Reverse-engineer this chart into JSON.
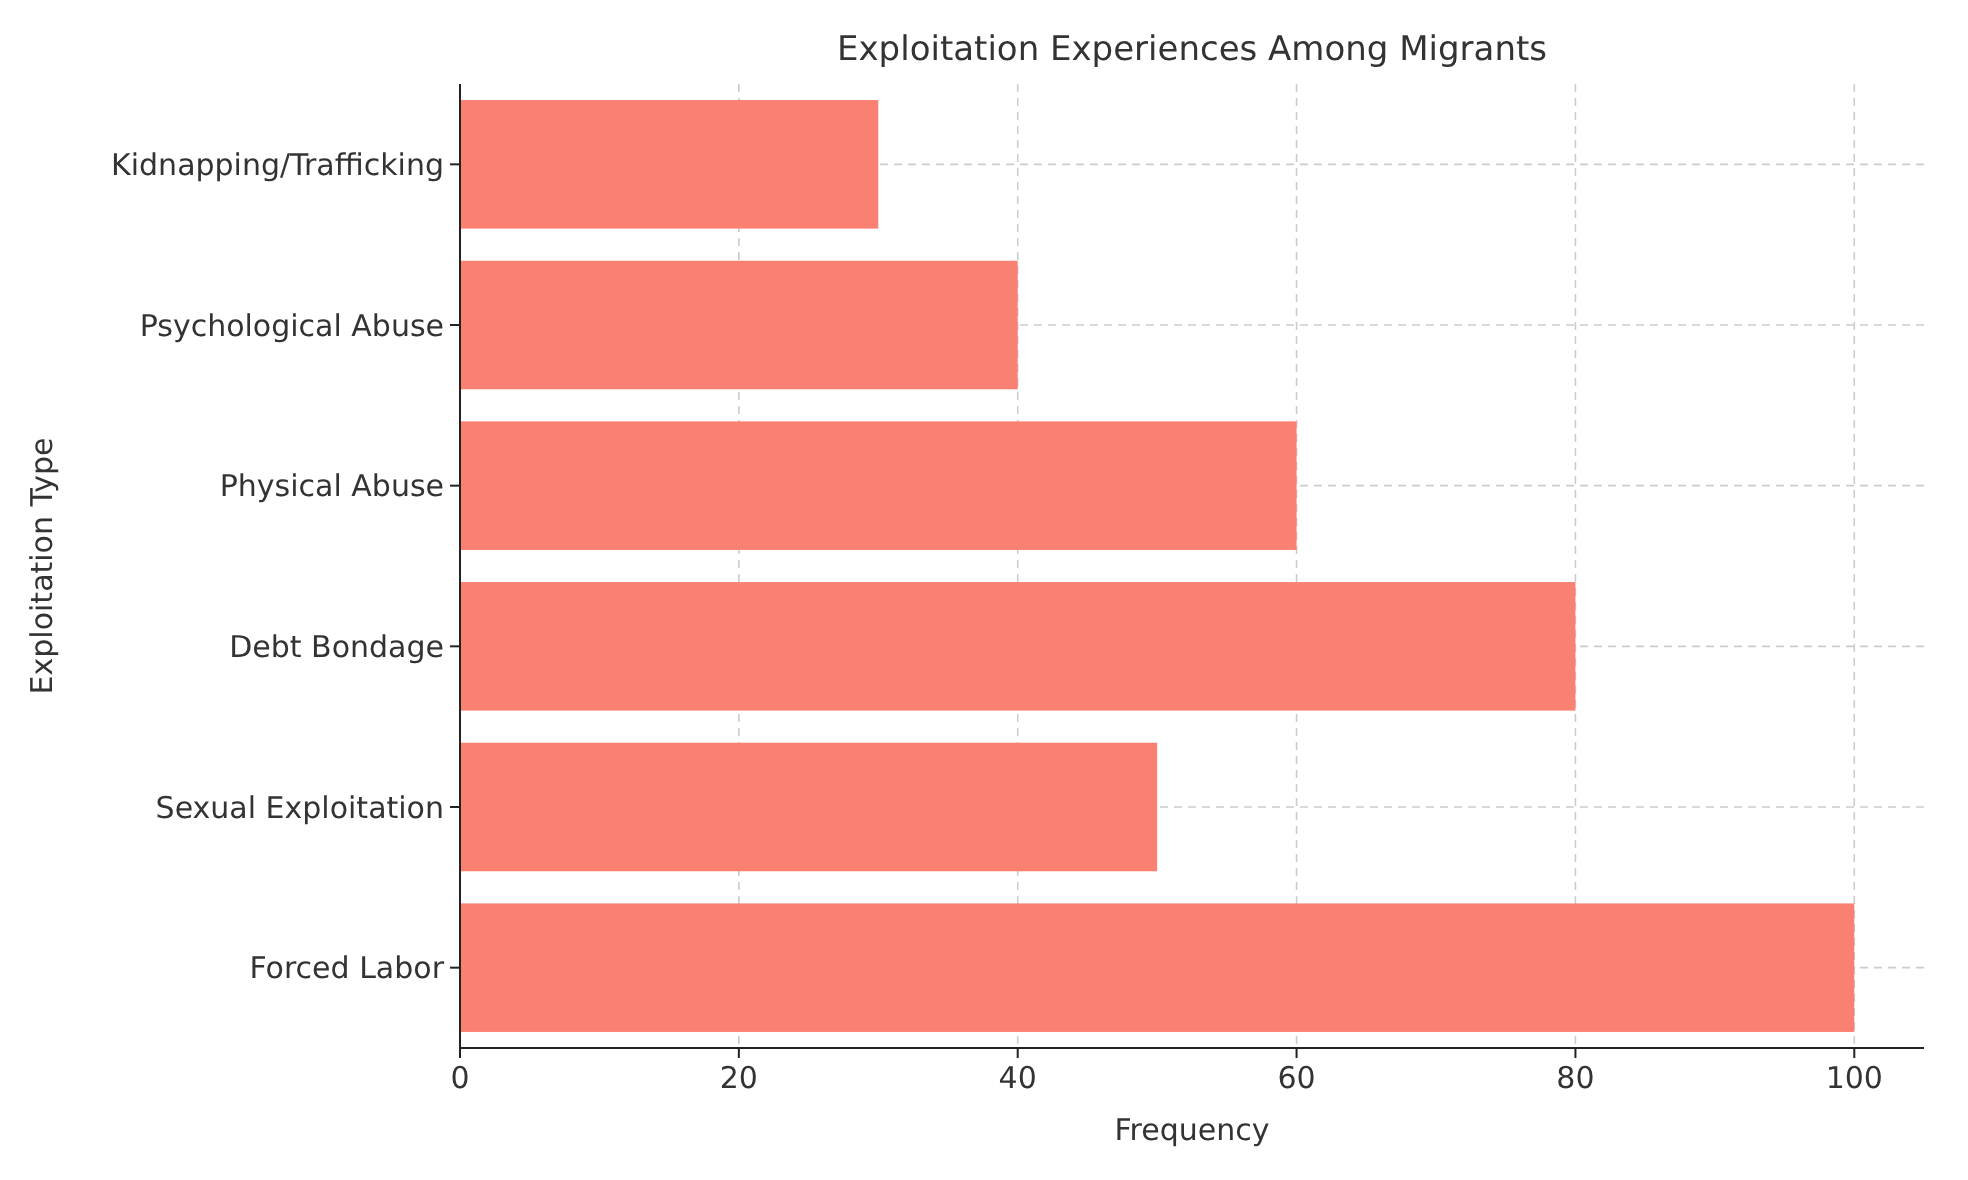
{
  "chart_data": {
    "type": "bar",
    "orientation": "horizontal",
    "title": "Exploitation Experiences Among Migrants",
    "xlabel": "Frequency",
    "ylabel": "Exploitation Type",
    "categories": [
      "Kidnapping/Trafficking",
      "Psychological Abuse",
      "Physical Abuse",
      "Debt Bondage",
      "Sexual Exploitation",
      "Forced Labor"
    ],
    "values": [
      30,
      40,
      60,
      80,
      50,
      100
    ],
    "color": "#fa8072",
    "xlim": [
      0,
      105
    ],
    "xticks": [
      0,
      20,
      40,
      60,
      80,
      100
    ],
    "grid": true
  }
}
